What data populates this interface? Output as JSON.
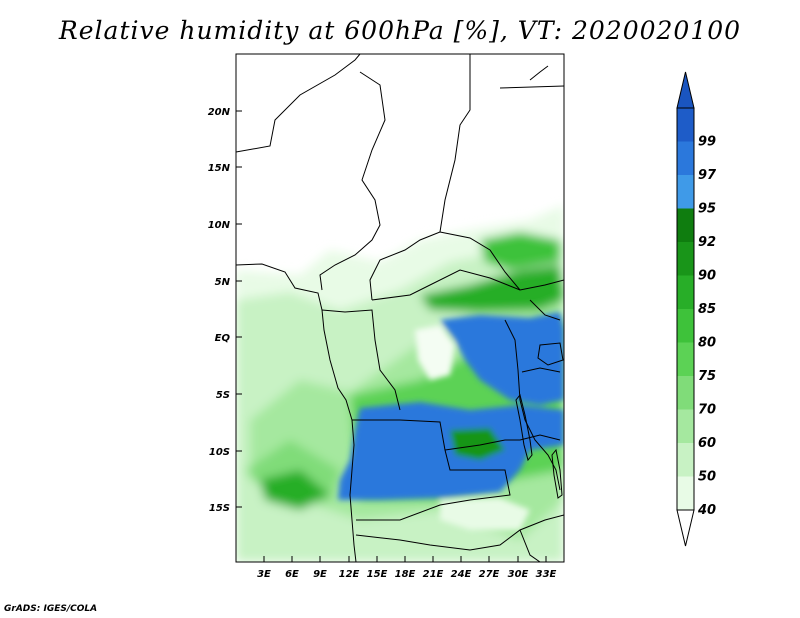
{
  "title": "Relative humidity at 600hPa [%], VT: 2020020100",
  "credit": "GrADS: IGES/COLA",
  "map": {
    "lat_ticks": [
      "20N",
      "15N",
      "10N",
      "5N",
      "EQ",
      "5S",
      "10S",
      "15S"
    ],
    "lon_ticks": [
      "3E",
      "6E",
      "9E",
      "12E",
      "15E",
      "18E",
      "21E",
      "24E",
      "27E",
      "30E",
      "33E"
    ]
  },
  "colorbar": {
    "levels": [
      "40",
      "50",
      "60",
      "70",
      "75",
      "80",
      "85",
      "90",
      "92",
      "95",
      "97",
      "99"
    ],
    "colors": [
      "#e8fbe6",
      "#c8f2c4",
      "#a5e89f",
      "#80dc79",
      "#5cd255",
      "#3ec23a",
      "#28ae28",
      "#199519",
      "#0f7d0f",
      "#3f9ae8",
      "#2b78dc",
      "#1e5cc8"
    ],
    "under_color": "#ffffff",
    "over_color": "#1a55c0"
  }
}
